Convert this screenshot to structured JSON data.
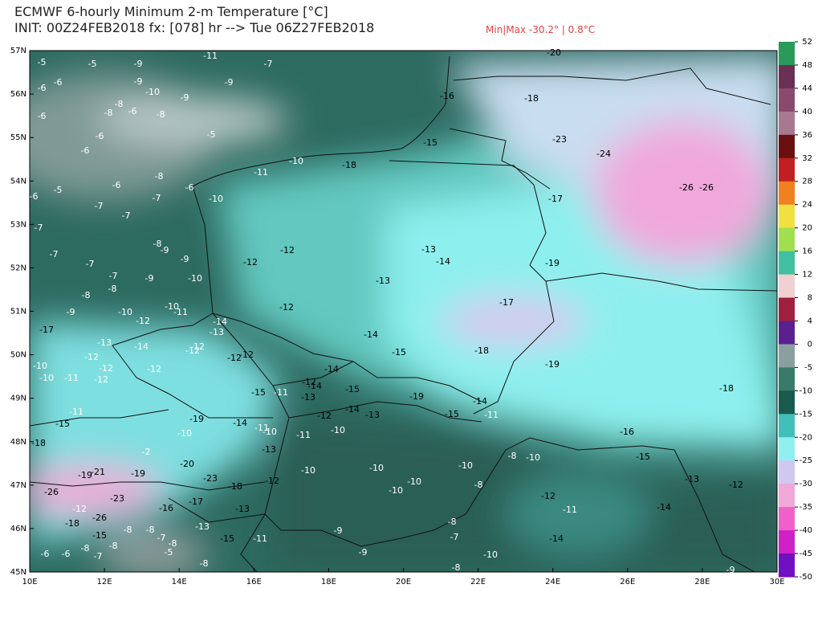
{
  "header": {
    "title": "ECMWF 6-hourly Minimum 2-m Temperature [°C]",
    "subtitle": "INIT: 00Z24FEB2018 fx: [078] hr --> Tue 06Z27FEB2018",
    "minmax": "Min|Max -30.2° | 0.8°C"
  },
  "map": {
    "lat_labels": [
      "57N",
      "56N",
      "55N",
      "54N",
      "53N",
      "52N",
      "51N",
      "50N",
      "49N",
      "48N",
      "47N",
      "46N",
      "45N"
    ],
    "lon_labels": [
      "10E",
      "12E",
      "14E",
      "16E",
      "18E",
      "20E",
      "22E",
      "24E",
      "26E",
      "28E",
      "30E"
    ],
    "point_labels": [
      -5,
      -5,
      -9,
      -11,
      -7,
      -20,
      -6,
      -6,
      -9,
      -10,
      -9,
      -9,
      -6,
      -8,
      -8,
      -6,
      -8,
      -16,
      -18,
      -6,
      -5,
      -6,
      -15,
      -23,
      -24,
      -10,
      -18,
      -11,
      -8,
      -6,
      -5,
      -6,
      -26,
      -26,
      -10,
      -7,
      -7,
      -7,
      -17,
      -6,
      -7,
      -8,
      -9,
      -9,
      -12,
      -12,
      -13,
      -14,
      -19,
      -7,
      -7,
      -7,
      -9,
      -10,
      -13,
      -8,
      -8,
      -12,
      -10,
      -11,
      -9,
      -10,
      -12,
      -17,
      -14,
      -13,
      -17,
      -14,
      -13,
      -14,
      -12,
      -12,
      -15,
      -18,
      -12,
      -12,
      -12,
      -10,
      -12,
      -14,
      -19,
      -12,
      -10,
      -11,
      -12,
      -12,
      -14,
      -15,
      -15,
      -11,
      -13,
      -19,
      -18,
      -14,
      -11,
      -14,
      -13,
      -12,
      -15,
      -11,
      -15,
      -19,
      -14,
      -11,
      -10,
      -10,
      -10,
      -11,
      -16,
      -18,
      -13,
      -2,
      -20,
      -10,
      -10,
      -10,
      -8,
      -10,
      -15,
      -13,
      -19,
      -21,
      -19,
      -23,
      -18,
      -12,
      -10,
      -10,
      -8,
      -12,
      -12,
      -26,
      -23,
      -17,
      -16,
      -13,
      -12,
      -11,
      -14,
      -26,
      -18,
      -8,
      -9,
      -13,
      -15,
      -11,
      -7,
      -14,
      -15,
      -8,
      -8,
      -7,
      -8,
      -8,
      -8,
      -5,
      -9,
      -10,
      -6,
      -6,
      -7,
      -8,
      -8,
      -9
    ]
  },
  "colorbar": {
    "ticks": [
      52,
      48,
      44,
      40,
      36,
      32,
      28,
      24,
      20,
      16,
      12,
      8,
      4,
      0,
      -5,
      -10,
      -15,
      -20,
      -25,
      -30,
      -35,
      -40,
      -45,
      -50
    ],
    "colors": [
      "#2a9a5a",
      "#6a2f55",
      "#8a4a6e",
      "#a87890",
      "#6a0f0f",
      "#c02020",
      "#f08020",
      "#f0e040",
      "#a0e050",
      "#40c0a0",
      "#f0d0d0",
      "#a02040",
      "#5a2090",
      "#8aa0a0",
      "#3a7a6a",
      "#1a5a4e",
      "#40c0b8",
      "#90f0f0",
      "#d0c8f0",
      "#f0a8d8",
      "#f060c8",
      "#d020c8",
      "#7010c0"
    ]
  }
}
